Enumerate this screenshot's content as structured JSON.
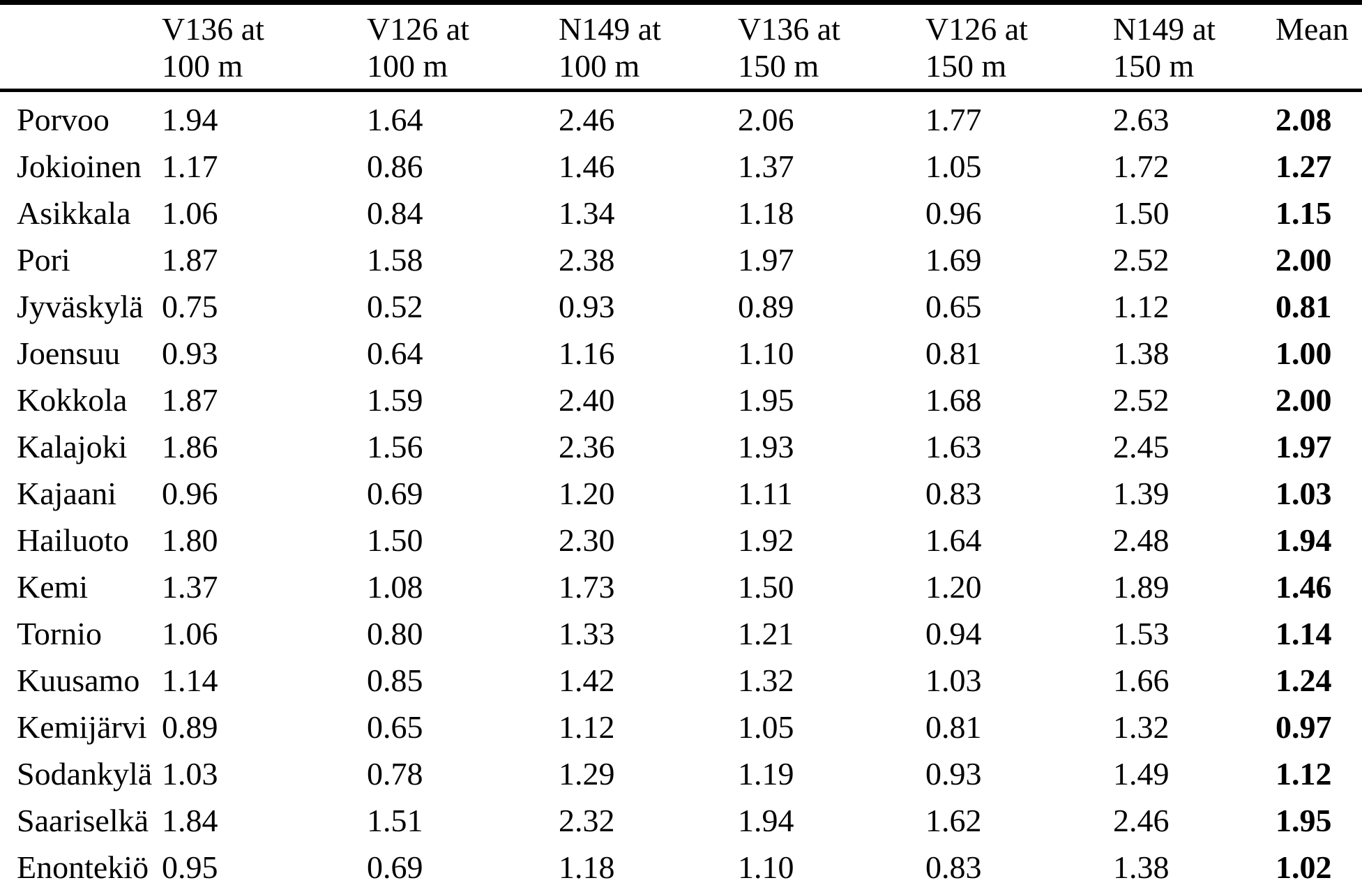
{
  "table": {
    "columns": [
      {
        "line1": "",
        "line2": ""
      },
      {
        "line1": "V136 at",
        "line2": "100 m"
      },
      {
        "line1": "V126 at",
        "line2": "100 m"
      },
      {
        "line1": "N149 at",
        "line2": "100 m"
      },
      {
        "line1": "V136 at",
        "line2": "150 m"
      },
      {
        "line1": "V126 at",
        "line2": "150 m"
      },
      {
        "line1": "N149 at",
        "line2": "150 m"
      },
      {
        "line1": "Mean",
        "line2": ""
      }
    ],
    "rows": [
      {
        "location": "Porvoo",
        "values": [
          "1.94",
          "1.64",
          "2.46",
          "2.06",
          "1.77",
          "2.63"
        ],
        "mean": "2.08"
      },
      {
        "location": "Jokioinen",
        "values": [
          "1.17",
          "0.86",
          "1.46",
          "1.37",
          "1.05",
          "1.72"
        ],
        "mean": "1.27"
      },
      {
        "location": "Asikkala",
        "values": [
          "1.06",
          "0.84",
          "1.34",
          "1.18",
          "0.96",
          "1.50"
        ],
        "mean": "1.15"
      },
      {
        "location": "Pori",
        "values": [
          "1.87",
          "1.58",
          "2.38",
          "1.97",
          "1.69",
          "2.52"
        ],
        "mean": "2.00"
      },
      {
        "location": "Jyväskylä",
        "values": [
          "0.75",
          "0.52",
          "0.93",
          "0.89",
          "0.65",
          "1.12"
        ],
        "mean": "0.81"
      },
      {
        "location": "Joensuu",
        "values": [
          "0.93",
          "0.64",
          "1.16",
          "1.10",
          "0.81",
          "1.38"
        ],
        "mean": "1.00"
      },
      {
        "location": "Kokkola",
        "values": [
          "1.87",
          "1.59",
          "2.40",
          "1.95",
          "1.68",
          "2.52"
        ],
        "mean": "2.00"
      },
      {
        "location": "Kalajoki",
        "values": [
          "1.86",
          "1.56",
          "2.36",
          "1.93",
          "1.63",
          "2.45"
        ],
        "mean": "1.97"
      },
      {
        "location": "Kajaani",
        "values": [
          "0.96",
          "0.69",
          "1.20",
          "1.11",
          "0.83",
          "1.39"
        ],
        "mean": "1.03"
      },
      {
        "location": "Hailuoto",
        "values": [
          "1.80",
          "1.50",
          "2.30",
          "1.92",
          "1.64",
          "2.48"
        ],
        "mean": "1.94"
      },
      {
        "location": "Kemi",
        "values": [
          "1.37",
          "1.08",
          "1.73",
          "1.50",
          "1.20",
          "1.89"
        ],
        "mean": "1.46"
      },
      {
        "location": "Tornio",
        "values": [
          "1.06",
          "0.80",
          "1.33",
          "1.21",
          "0.94",
          "1.53"
        ],
        "mean": "1.14"
      },
      {
        "location": "Kuusamo",
        "values": [
          "1.14",
          "0.85",
          "1.42",
          "1.32",
          "1.03",
          "1.66"
        ],
        "mean": "1.24"
      },
      {
        "location": "Kemijärvi",
        "values": [
          "0.89",
          "0.65",
          "1.12",
          "1.05",
          "0.81",
          "1.32"
        ],
        "mean": "0.97"
      },
      {
        "location": "Sodankylä",
        "values": [
          "1.03",
          "0.78",
          "1.29",
          "1.19",
          "0.93",
          "1.49"
        ],
        "mean": "1.12"
      },
      {
        "location": "Saariselkä",
        "values": [
          "1.84",
          "1.51",
          "2.32",
          "1.94",
          "1.62",
          "2.46"
        ],
        "mean": "1.95"
      },
      {
        "location": "Enontekiö",
        "values": [
          "0.95",
          "0.69",
          "1.18",
          "1.10",
          "0.83",
          "1.38"
        ],
        "mean": "1.02"
      }
    ]
  },
  "colors": {
    "text": "#000000",
    "background": "#ffffff",
    "rule": "#000000"
  }
}
